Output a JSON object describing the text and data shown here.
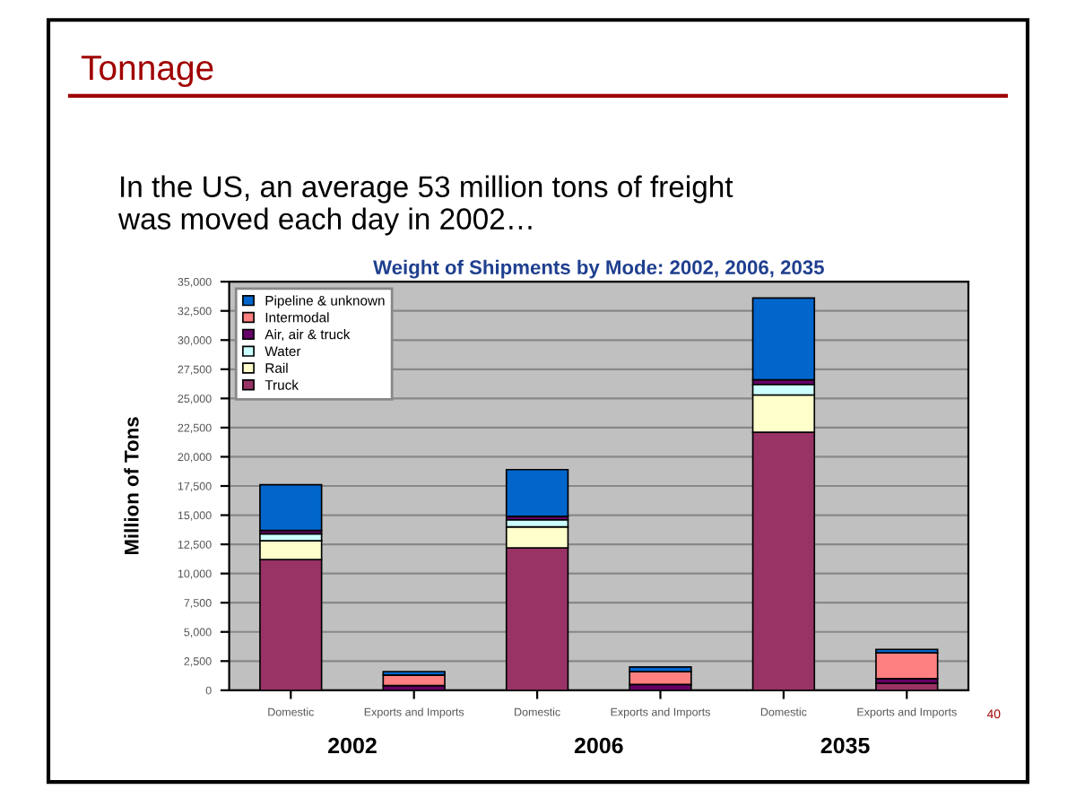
{
  "chart_data": {
    "type": "bar",
    "stacked": true,
    "title": "Weight of Shipments by Mode: 2002, 2006, 2035",
    "ylabel": "Million of Tons",
    "categories": [
      "Domestic",
      "Exports and Imports",
      "Domestic",
      "Exports and Imports",
      "Domestic",
      "Exports and Imports"
    ],
    "series": [
      {
        "name": "Truck",
        "color": "#993366",
        "values": [
          11200,
          null,
          12200,
          null,
          22100,
          600
        ]
      },
      {
        "name": "Rail",
        "color": "#ffffcc",
        "values": [
          1600,
          0,
          1800,
          0,
          3200,
          0
        ]
      },
      {
        "name": "Water",
        "color": "#ccffff",
        "values": [
          600,
          0,
          600,
          0,
          900,
          0
        ]
      },
      {
        "name": "Air, air & truck",
        "color": "#660066",
        "values": [
          300,
          400,
          300,
          500,
          400,
          400
        ]
      },
      {
        "name": "Intermodal",
        "color": "#ff8080",
        "values": [
          0,
          900,
          0,
          1100,
          0,
          2200
        ]
      },
      {
        "name": "Pipeline & unknown",
        "color": "#0066cc",
        "values": [
          3900,
          300,
          4000,
          400,
          7000,
          300
        ]
      }
    ],
    "ylim": [
      0,
      35000
    ],
    "yticks": [
      0,
      {
        "value": 2500,
        "label": "2,500"
      },
      {
        "value": 5000,
        "label": "5,000"
      },
      {
        "value": 7500,
        "label": "7,500"
      },
      {
        "value": 10000,
        "label": "10,000"
      },
      {
        "value": 12500,
        "label": "12,500"
      },
      {
        "value": 15000,
        "label": "15,000"
      },
      {
        "value": 17500,
        "label": "17,500"
      },
      {
        "value": 20000,
        "label": "20,000"
      },
      {
        "value": 22500,
        "label": "22,500"
      },
      {
        "value": 25000,
        "label": "25,000"
      },
      {
        "value": 27500,
        "label": "27,500"
      },
      {
        "value": 30000,
        "label": "30,000"
      },
      {
        "value": 32500,
        "label": "32,500"
      },
      {
        "value": 35000,
        "label": "35,000"
      }
    ],
    "grid": "y",
    "legend": "top left",
    "annotations": [
      "Tonnage",
      "In the US, an average 53 million tons of freight\nwas moved each day in 2002…",
      "2002",
      "2006",
      "2035",
      "40"
    ]
  }
}
